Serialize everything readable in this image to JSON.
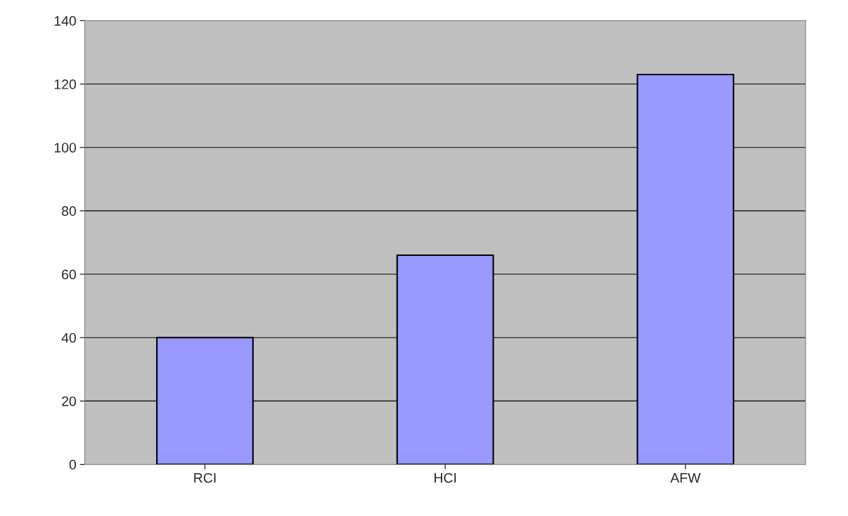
{
  "chart_data": {
    "type": "bar",
    "categories": [
      "RCI",
      "HCI",
      "AFW"
    ],
    "values": [
      40,
      66,
      123
    ],
    "color": "#9999ff",
    "ylim": [
      0,
      140
    ],
    "yticks": [
      0,
      20,
      40,
      60,
      80,
      100,
      120,
      140
    ],
    "grid": "y",
    "legend": false
  }
}
